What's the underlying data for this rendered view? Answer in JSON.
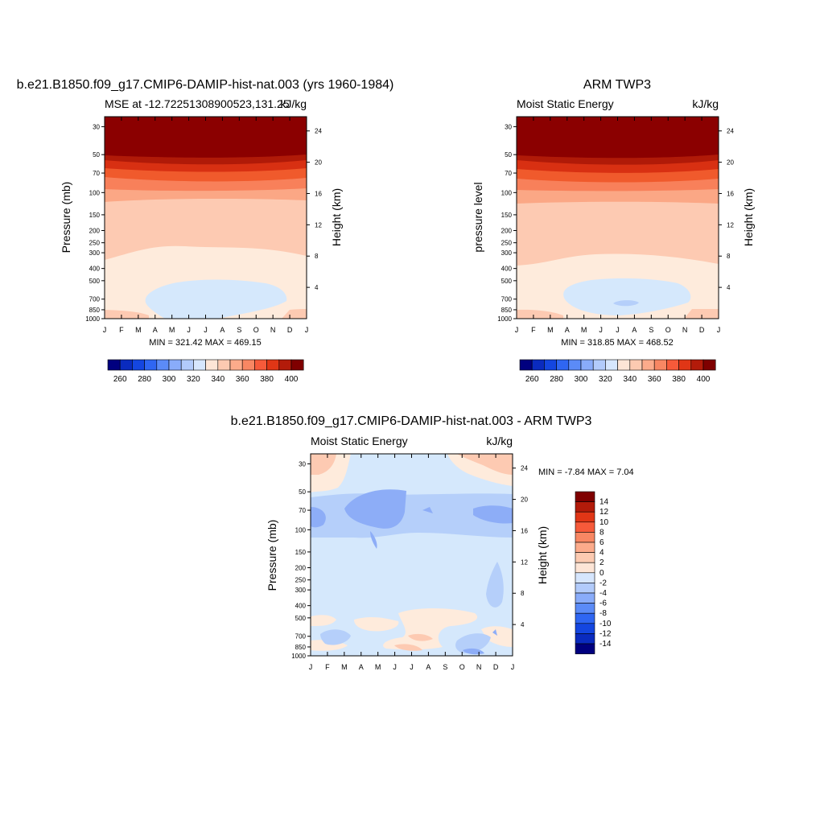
{
  "panels": [
    {
      "id": "model",
      "title": "b.e21.B1850.f09_g17.CMIP6-DAMIP-hist-nat.003 (yrs 1960-1984)",
      "subtitle_left": "MSE at -12.72251308900523,131.25",
      "subtitle_right": "kJ/kg",
      "ylabel": "Pressure (mb)",
      "ylabel_right": "Height (km)",
      "stats": "MIN = 321.42 MAX = 469.15"
    },
    {
      "id": "obs",
      "title": "ARM TWP3",
      "subtitle_left": "Moist Static Energy",
      "subtitle_right": "kJ/kg",
      "ylabel": "pressure level",
      "ylabel_right": "Height (km)",
      "stats": "MIN = 318.85 MAX = 468.52"
    },
    {
      "id": "diff",
      "title": "b.e21.B1850.f09_g17.CMIP6-DAMIP-hist-nat.003 - ARM TWP3",
      "subtitle_left": "Moist Static Energy",
      "subtitle_right": "kJ/kg",
      "ylabel": "Pressure (mb)",
      "ylabel_right": "Height (km)",
      "stats": "MIN =  -7.84 MAX =   7.04"
    }
  ],
  "chart_data": [
    {
      "type": "heatmap",
      "panel": "model",
      "x_ticks": [
        "J",
        "F",
        "M",
        "A",
        "M",
        "J",
        "J",
        "A",
        "S",
        "O",
        "N",
        "D",
        "J"
      ],
      "y_ticks_pressure": [
        30,
        50,
        70,
        100,
        150,
        200,
        250,
        300,
        400,
        500,
        700,
        850,
        1000
      ],
      "y_ticks_height_km": [
        4,
        8,
        12,
        16,
        20,
        24
      ],
      "yrange_mb": [
        1000,
        25
      ],
      "colorbar_labels": [
        260,
        280,
        300,
        320,
        340,
        360,
        380,
        400
      ],
      "min": 321.42,
      "max": 469.15
    },
    {
      "type": "heatmap",
      "panel": "obs",
      "x_ticks": [
        "J",
        "F",
        "M",
        "A",
        "M",
        "J",
        "J",
        "A",
        "S",
        "O",
        "N",
        "D",
        "J"
      ],
      "y_ticks_pressure": [
        30,
        50,
        70,
        100,
        150,
        200,
        250,
        300,
        400,
        500,
        700,
        850,
        1000
      ],
      "y_ticks_height_km": [
        4,
        8,
        12,
        16,
        20,
        24
      ],
      "yrange_mb": [
        1000,
        25
      ],
      "colorbar_labels": [
        260,
        280,
        300,
        320,
        340,
        360,
        380,
        400
      ],
      "min": 318.85,
      "max": 468.52
    },
    {
      "type": "heatmap",
      "panel": "diff",
      "x_ticks": [
        "J",
        "F",
        "M",
        "A",
        "M",
        "J",
        "J",
        "A",
        "S",
        "O",
        "N",
        "D",
        "J"
      ],
      "y_ticks_pressure": [
        30,
        50,
        70,
        100,
        150,
        200,
        250,
        300,
        400,
        500,
        700,
        850,
        1000
      ],
      "y_ticks_height_km": [
        4,
        8,
        12,
        16,
        20,
        24
      ],
      "yrange_mb": [
        1000,
        25
      ],
      "colorbar_labels": [
        14,
        12,
        10,
        8,
        6,
        4,
        2,
        0,
        -2,
        -4,
        -6,
        -8,
        -10,
        -12,
        -14
      ],
      "min": -7.84,
      "max": 7.04
    }
  ],
  "colors": {
    "h_colorbar": [
      "#00007f",
      "#0a2bbf",
      "#1446e0",
      "#2f66f2",
      "#5b8bf7",
      "#89acfa",
      "#b2cbfb",
      "#d6e6fd",
      "#fde5d6",
      "#fccab1",
      "#fcab8b",
      "#f88763",
      "#f65a3a",
      "#e03616",
      "#b31b0a",
      "#7f0000"
    ],
    "v_colorbar": [
      "#7f0000",
      "#b31b0a",
      "#e03616",
      "#f65a3a",
      "#f88763",
      "#fcab8b",
      "#fccab1",
      "#fde5d6",
      "#d6e6fd",
      "#b2cbfb",
      "#89acfa",
      "#5b8bf7",
      "#2f66f2",
      "#1446e0",
      "#0a2bbf",
      "#00007f"
    ],
    "levels": {
      "darkred": "#8b0000",
      "red1": "#b01a08",
      "red2": "#d83012",
      "red3": "#f05a2c",
      "red4": "#f8805a",
      "red5": "#fba785",
      "red6": "#fdcab2",
      "pale_orange": "#feebdc",
      "pale_blue": "#d5e8fc",
      "blue2": "#b5cffa",
      "blue3": "#8dadf7",
      "blue4": "#5b86f2",
      "blue5": "#2a54d8"
    }
  }
}
